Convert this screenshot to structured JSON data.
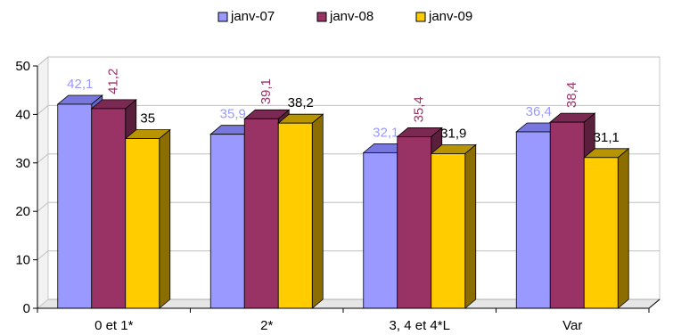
{
  "chart_data": {
    "type": "bar",
    "categories": [
      "0 et 1*",
      "2*",
      "3, 4 et 4*L",
      "Var"
    ],
    "series": [
      {
        "name": "janv-07",
        "values": [
          42.1,
          35.9,
          32.1,
          36.4
        ],
        "labels": [
          "42,1",
          "35,9",
          "32,1",
          "36,4"
        ],
        "color": "#9999ff",
        "side": "#6666cc",
        "top": "#7777dd",
        "label_color": "#9999ff",
        "label_rotation": "horizontal"
      },
      {
        "name": "janv-08",
        "values": [
          41.2,
          39.1,
          35.4,
          38.4
        ],
        "labels": [
          "41,2",
          "39,1",
          "35,4",
          "38,4"
        ],
        "color": "#993366",
        "side": "#5a1f3c",
        "top": "#7a2a52",
        "label_color": "#993366",
        "label_rotation": "vertical"
      },
      {
        "name": "janv-09",
        "values": [
          35,
          38.2,
          31.9,
          31.1
        ],
        "labels": [
          "35",
          "38,2",
          "31,9",
          "31,1"
        ],
        "color": "#ffcc00",
        "side": "#8c6e00",
        "top": "#b89400",
        "label_color": "#000000",
        "label_rotation": "horizontal"
      }
    ],
    "ylim": [
      0,
      50
    ],
    "yticks": [
      0,
      10,
      20,
      30,
      40,
      50
    ],
    "grid": true,
    "legend_position": "top",
    "style": "3d-clustered-column"
  }
}
